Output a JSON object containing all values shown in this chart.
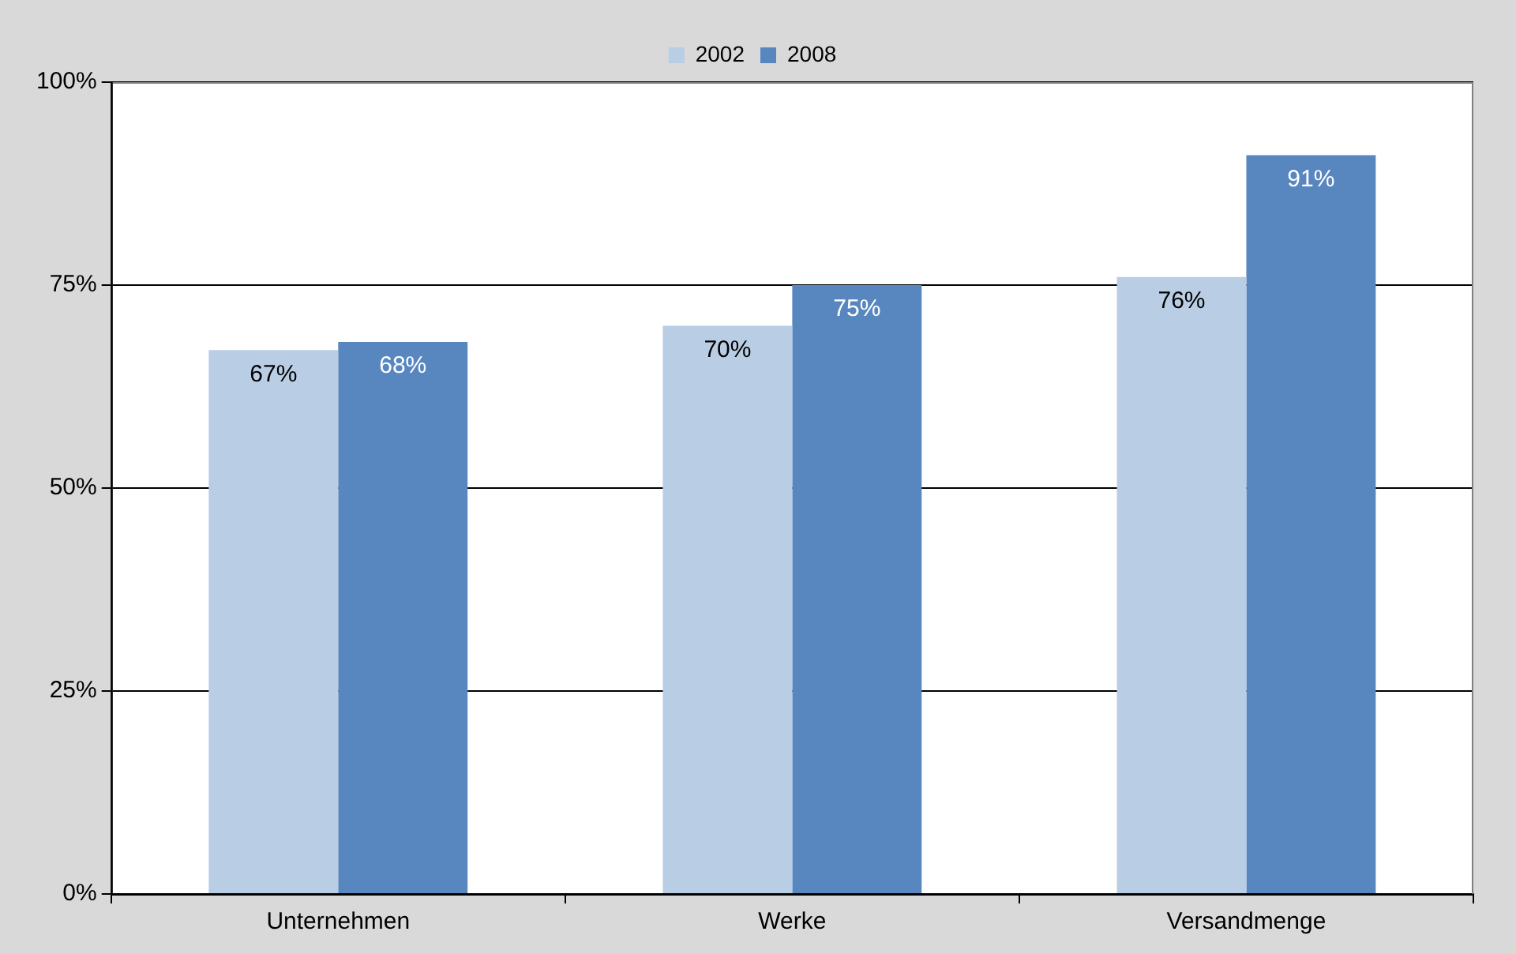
{
  "chart_data": {
    "type": "bar",
    "categories": [
      "Unternehmen",
      "Werke",
      "Versandmenge"
    ],
    "series": [
      {
        "name": "2002",
        "color": "#b9cde5",
        "values": [
          67,
          70,
          76
        ],
        "value_labels": [
          "67%",
          "70%",
          "76%"
        ]
      },
      {
        "name": "2008",
        "color": "#5887c0",
        "values": [
          68,
          75,
          91
        ],
        "value_labels": [
          "68%",
          "75%",
          "91%"
        ]
      }
    ],
    "ylim": [
      0,
      100
    ],
    "yticks": [
      {
        "value": 0,
        "label": "0%"
      },
      {
        "value": 25,
        "label": "25%"
      },
      {
        "value": 50,
        "label": "50%"
      },
      {
        "value": 75,
        "label": "75%"
      },
      {
        "value": 100,
        "label": "100%"
      }
    ],
    "grid": "y",
    "legend": "top"
  }
}
